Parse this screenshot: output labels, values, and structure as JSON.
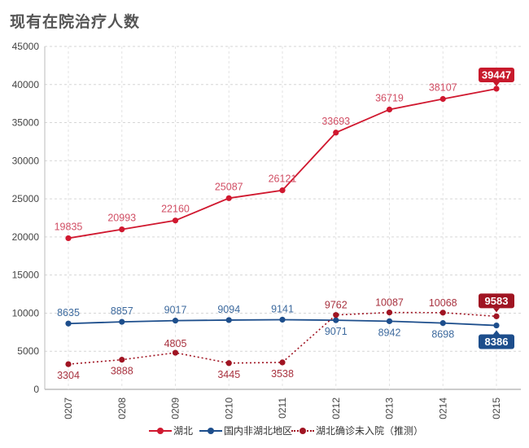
{
  "page": {
    "title": "现有在院治疗人数"
  },
  "chart_data": {
    "type": "line",
    "title": "现有在院治疗人数",
    "xlabel": "",
    "ylabel": "",
    "categories": [
      "0207",
      "0208",
      "0209",
      "0210",
      "0211",
      "0212",
      "0213",
      "0214",
      "0215"
    ],
    "ylim": [
      0,
      45000
    ],
    "yticks": [
      0,
      5000,
      10000,
      15000,
      20000,
      25000,
      30000,
      35000,
      40000,
      45000
    ],
    "grid": true,
    "legend_position": "bottom",
    "series": [
      {
        "name": "湖北",
        "color": "#d0182f",
        "label_color": "#d14e64",
        "style": "solid",
        "values": [
          19835,
          20993,
          22160,
          25087,
          26121,
          33693,
          36719,
          38107,
          39447
        ],
        "highlight_last": true
      },
      {
        "name": "国内非湖北地区",
        "color": "#1d4e8c",
        "label_color": "#3d6a9e",
        "style": "solid",
        "values": [
          8635,
          8857,
          9017,
          9094,
          9141,
          9071,
          8942,
          8698,
          8386
        ],
        "highlight_last": true
      },
      {
        "name": "湖北确诊未入院（推测）",
        "color": "#a01422",
        "label_color": "#a8323f",
        "style": "dotted",
        "values": [
          3304,
          3888,
          4805,
          3445,
          3538,
          9762,
          10087,
          10068,
          9583
        ],
        "highlight_last": true
      }
    ]
  }
}
